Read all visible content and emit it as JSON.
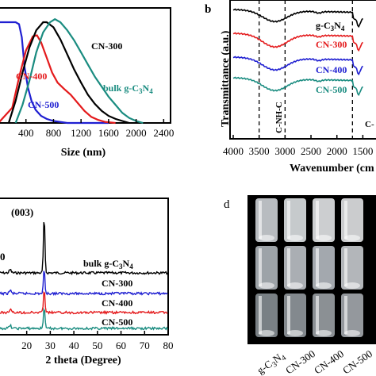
{
  "colors": {
    "black": "#000000",
    "red": "#e41a1c",
    "blue": "#1f1fd1",
    "teal": "#1a8c80"
  },
  "panel_labels": {
    "b": "b",
    "d": "d"
  },
  "photo_grid": {
    "labels": [
      "g-C3N4",
      "CN-300",
      "CN-400",
      "CN-500"
    ]
  },
  "chart_data": [
    {
      "type": "line",
      "panel": "a",
      "xlabel": "Size (nm)",
      "ylabel": "",
      "xlim": [
        0,
        2500
      ],
      "xticks": [
        400,
        800,
        1200,
        1600,
        2000,
        2400
      ],
      "series": [
        {
          "name": "CN-500",
          "color": "#1f1fd1",
          "x": [
            0,
            250,
            300,
            340,
            380,
            430,
            480,
            540,
            620,
            700,
            800,
            900,
            1000,
            1200,
            1400,
            1600
          ],
          "y": [
            1.0,
            1.0,
            0.98,
            0.85,
            0.55,
            0.35,
            0.22,
            0.13,
            0.07,
            0.04,
            0.02,
            0.01,
            0.0,
            0.0,
            0.0,
            0.0
          ]
        },
        {
          "name": "CN-400",
          "color": "#e41a1c",
          "x": [
            0,
            200,
            300,
            400,
            500,
            560,
            620,
            700,
            780,
            860,
            950,
            1050,
            1150,
            1250,
            1350,
            1450,
            1550,
            1700
          ],
          "y": [
            0.0,
            0.15,
            0.45,
            0.72,
            0.86,
            0.87,
            0.8,
            0.65,
            0.5,
            0.4,
            0.34,
            0.28,
            0.2,
            0.12,
            0.06,
            0.03,
            0.01,
            0.0
          ]
        },
        {
          "name": "CN-300",
          "color": "#000000",
          "x": [
            150,
            250,
            350,
            450,
            550,
            650,
            700,
            800,
            900,
            1000,
            1100,
            1200,
            1300,
            1400,
            1500,
            1600,
            1700,
            1800,
            1900
          ],
          "y": [
            0.0,
            0.22,
            0.5,
            0.75,
            0.92,
            1.0,
            1.0,
            0.95,
            0.83,
            0.68,
            0.53,
            0.4,
            0.28,
            0.19,
            0.12,
            0.07,
            0.04,
            0.02,
            0.0
          ]
        },
        {
          "name": "bulk g-C3N4",
          "color": "#1a8c80",
          "x": [
            250,
            350,
            450,
            550,
            650,
            750,
            820,
            900,
            1000,
            1100,
            1200,
            1300,
            1400,
            1500,
            1600,
            1700,
            1800,
            1900,
            2000,
            2100
          ],
          "y": [
            0.0,
            0.18,
            0.42,
            0.7,
            0.9,
            1.0,
            1.03,
            1.0,
            0.92,
            0.82,
            0.7,
            0.58,
            0.46,
            0.36,
            0.26,
            0.18,
            0.1,
            0.05,
            0.02,
            0.0
          ]
        }
      ],
      "labels": [
        "CN-300",
        "CN-400",
        "CN-500",
        "bulk g-C3N4"
      ]
    },
    {
      "type": "line",
      "panel": "b",
      "xlabel": "Wavenumber (cm",
      "ylabel": "Transmittance (a.u.)",
      "xlim": [
        4000,
        1500
      ],
      "xticks": [
        4000,
        3500,
        3000,
        2500,
        2000,
        1500
      ],
      "vlines": [
        3500,
        3000,
        1700
      ],
      "annotations": [
        "C-NH-C",
        "C-"
      ],
      "series": [
        {
          "name": "g-C3N4",
          "color": "#000000"
        },
        {
          "name": "CN-300",
          "color": "#e41a1c"
        },
        {
          "name": "CN-400",
          "color": "#1f1fd1"
        },
        {
          "name": "CN-500",
          "color": "#1a8c80"
        }
      ]
    },
    {
      "type": "line",
      "panel": "c",
      "xlabel": "2 theta (Degree)",
      "ylabel": "",
      "xlim": [
        10,
        80
      ],
      "xticks": [
        20,
        30,
        40,
        50,
        60,
        70,
        80
      ],
      "peak_label": "(003)",
      "side_label": "0",
      "series": [
        {
          "name": "bulk g-C3N4",
          "color": "#000000"
        },
        {
          "name": "CN-300",
          "color": "#1f1fd1"
        },
        {
          "name": "CN-400",
          "color": "#e41a1c"
        },
        {
          "name": "CN-500",
          "color": "#1a8c80"
        }
      ]
    }
  ]
}
